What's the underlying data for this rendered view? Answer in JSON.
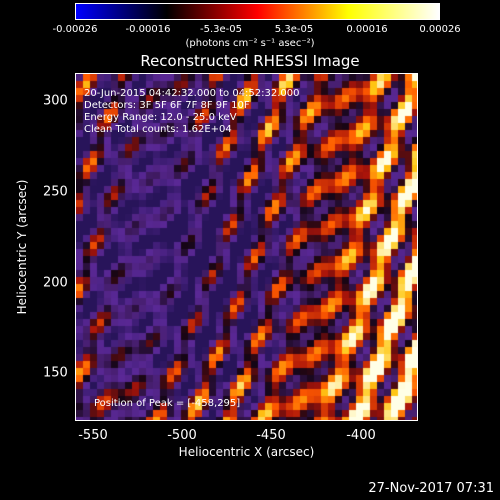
{
  "colorbar": {
    "ticks": [
      "-0.00026",
      "-0.00016",
      "-5.3e-05",
      "5.3e-05",
      "0.00016",
      "0.00026"
    ],
    "units": "(photons cm⁻² s⁻¹ asec⁻²)",
    "colors": [
      "#0000ff",
      "#000000",
      "#ff0000",
      "#ffff00",
      "#ffffff"
    ]
  },
  "title": "Reconstructed RHESSI Image",
  "overlay": {
    "line1": "20-Jun-2015 04:42:32.000 to 04:52:32.000",
    "line2": "Detectors: 3F 5F 6F 7F 8F 9F 10F",
    "line3": "Energy Range: 12.0 - 25.0 keV",
    "line4": "Clean   Total counts: 1.62E+04",
    "peak": "Position of Peak = [-458,295]"
  },
  "chart_data": {
    "type": "heatmap",
    "title": "Reconstructed RHESSI Image",
    "xlabel": "Heliocentric X (arcsec)",
    "ylabel": "Heliocentric Y (arcsec)",
    "xlim": [
      -560,
      -368
    ],
    "ylim": [
      118,
      316
    ],
    "xticks": [
      "-550",
      "-500",
      "-450",
      "-400"
    ],
    "yticks": [
      "150",
      "200",
      "250",
      "300"
    ],
    "xtick_values": [
      -550,
      -500,
      -450,
      -400
    ],
    "ytick_values": [
      150,
      200,
      250,
      300
    ],
    "colorbar_range": [
      -0.00026,
      0.00026
    ],
    "peak_position": [
      -458,
      295
    ]
  },
  "timestamp": "27-Nov-2017 07:31"
}
